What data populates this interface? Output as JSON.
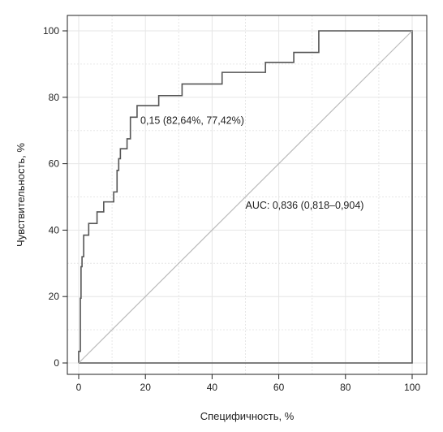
{
  "chart_data": {
    "type": "line",
    "xlabel": "Специфичность, %",
    "ylabel": "Чувствительность, %",
    "xlim": [
      0,
      100
    ],
    "ylim": [
      0,
      100
    ],
    "x_ticks": [
      0,
      20,
      40,
      60,
      80,
      100
    ],
    "y_ticks": [
      0,
      20,
      40,
      60,
      80,
      100
    ],
    "x_tick_labels": [
      "0",
      "20",
      "40",
      "60",
      "80",
      "100"
    ],
    "y_tick_labels": [
      "0",
      "20",
      "40",
      "60",
      "80",
      "100"
    ],
    "grid": true,
    "series": [
      {
        "values_kind": "roc_curve",
        "color": "#555555",
        "x": [
          0,
          0,
          0.5,
          0.5,
          0.7,
          0.7,
          1,
          1,
          1.5,
          1.5,
          3,
          3,
          5.5,
          5.5,
          7.5,
          7.5,
          10.5,
          10.5,
          11.5,
          11.5,
          12,
          12,
          12.5,
          12.5,
          14.5,
          14.5,
          15.5,
          15.5,
          17.5,
          17.5,
          24,
          24,
          31,
          31,
          43,
          43,
          56,
          56,
          64.5,
          64.5,
          72,
          72,
          100,
          100,
          0
        ],
        "y": [
          0,
          3.5,
          3.5,
          19.5,
          19.5,
          29,
          29,
          32,
          32,
          38.5,
          38.5,
          42,
          42,
          45.5,
          45.5,
          48.5,
          48.5,
          51.5,
          51.5,
          58,
          58,
          61.5,
          61.5,
          64.5,
          64.5,
          67.5,
          67.5,
          74,
          74,
          77.5,
          77.5,
          80.5,
          80.5,
          84,
          84,
          87.5,
          87.5,
          90.5,
          90.5,
          93.5,
          93.5,
          100,
          100,
          0,
          0
        ]
      },
      {
        "values_kind": "reference_diagonal",
        "color": "#bbbbbb",
        "x": [
          0,
          100
        ],
        "y": [
          0,
          100
        ]
      }
    ],
    "annotations": [
      {
        "text": "0,15 (82,64%, 77,42%)",
        "x": 18.5,
        "y": 72
      },
      {
        "text": "AUC: 0,836 (0,818–0,904)",
        "x": 50,
        "y": 46.5
      }
    ]
  },
  "colors": {
    "curve": "#555555",
    "diagonal": "#bbbbbb",
    "grid": "#e6e6e6",
    "axis": "#222222"
  }
}
